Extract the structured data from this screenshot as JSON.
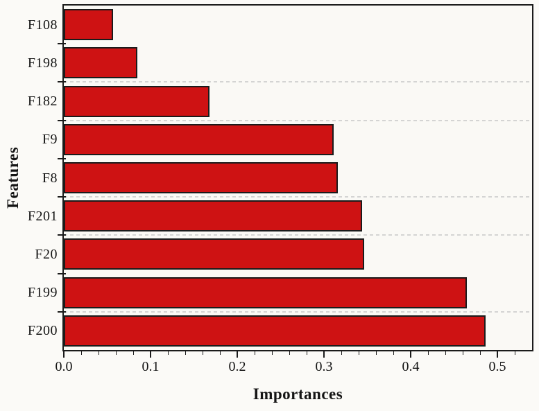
{
  "chart_data": {
    "type": "bar",
    "orientation": "horizontal",
    "title": "",
    "xlabel": "Importances",
    "ylabel": "Features",
    "categories": [
      "F108",
      "F198",
      "F182",
      "F9",
      "F8",
      "F201",
      "F20",
      "F199",
      "F200"
    ],
    "values": [
      0.057,
      0.085,
      0.168,
      0.311,
      0.316,
      0.344,
      0.346,
      0.465,
      0.486
    ],
    "xlim": [
      0,
      0.54
    ],
    "x_tick_labels": [
      "0.0",
      "0.1",
      "0.2",
      "0.3",
      "0.4",
      "0.5"
    ],
    "x_major_step": 0.1,
    "x_minor_step": 0.02,
    "grid": "horizontal dashed lines at some category boundaries",
    "gridline_boundaries_after_category": [
      2,
      3,
      5,
      6,
      8
    ],
    "legend": null,
    "colors": {
      "bar_fill": "#ce1213",
      "bar_border": "#1b1b1b",
      "axis": "#1b1b1b",
      "gridline": "#cdcdcd",
      "plot_background": "#faf9f5",
      "page_background": "#fbfaf7"
    }
  }
}
